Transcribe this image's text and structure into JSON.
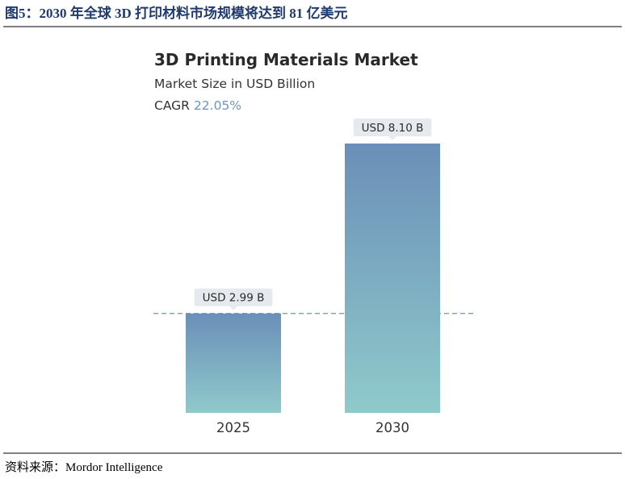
{
  "figure_title": "图5：2030 年全球 3D 打印材料市场规模将达到 81 亿美元",
  "source": "资料来源：Mordor Intelligence",
  "chart_data": {
    "type": "bar",
    "title": "3D Printing Materials Market",
    "subtitle": "Market Size in USD Billion",
    "cagr_label": "CAGR",
    "cagr": "22.05%",
    "categories": [
      "2025",
      "2030"
    ],
    "values": [
      2.99,
      8.1
    ],
    "value_labels": [
      "USD 2.99 B",
      "USD 8.10 B"
    ],
    "color_top": "#6b8fb8",
    "color_bottom": "#8fcacb",
    "reference_line": true
  }
}
